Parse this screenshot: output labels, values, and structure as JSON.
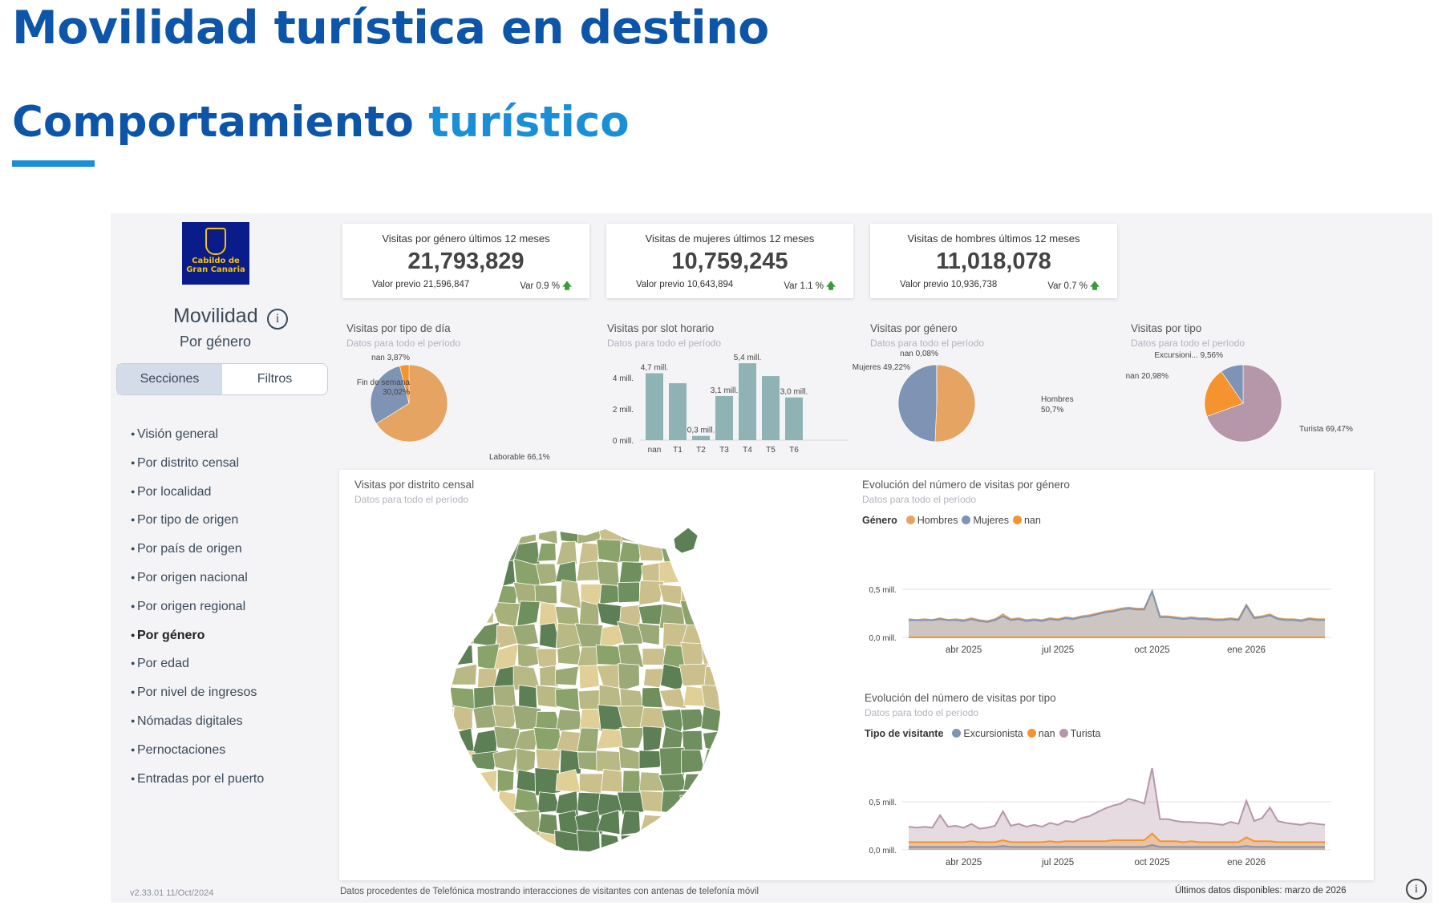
{
  "page": {
    "title": "Movilidad turística en destino",
    "subtitle_a": "Comportamiento",
    "subtitle_b": "turístico"
  },
  "sidebar": {
    "logo_text_1": "Cabildo de",
    "logo_text_2": "Gran Canaria",
    "title": "Movilidad",
    "info_icon": "i",
    "subtitle": "Por género",
    "tabs": [
      "Secciones",
      "Filtros"
    ],
    "items": [
      "Visión general",
      "Por distrito censal",
      "Por localidad",
      "Por tipo de origen",
      "Por país de origen",
      "Por origen nacional",
      "Por origen regional",
      "Por género",
      "Por edad",
      "Por nivel de ingresos",
      "Nómadas digitales",
      "Pernoctaciones",
      "Entradas por el puerto"
    ],
    "active_item": "Por género",
    "version": "v2.33.01 11/Oct/2024"
  },
  "kpis": [
    {
      "title": "Visitas por género últimos 12 meses",
      "value": "21,793,829",
      "prev": "Valor previo 21,596,847",
      "var": "Var 0.9 %"
    },
    {
      "title": "Visitas de mujeres últimos 12 meses",
      "value": "10,759,245",
      "prev": "Valor previo 10,643,894",
      "var": "Var 1.1 %"
    },
    {
      "title": "Visitas de hombres últimos 12 meses",
      "value": "11,018,078",
      "prev": "Valor previo 10,936,738",
      "var": "Var 0.7 %"
    }
  ],
  "sections": {
    "common_sub": "Datos para todo el período",
    "tipo_dia": "Visitas por tipo de día",
    "slot": "Visitas por slot horario",
    "genero": "Visitas por género",
    "tipo": "Visitas por tipo",
    "distrito": "Visitas por distrito censal",
    "evol_genero": "Evolución del número de visitas por género",
    "evol_tipo": "Evolución del número de visitas por tipo"
  },
  "legends": {
    "genero_title": "Género",
    "genero_items": [
      "Hombres",
      "Mujeres",
      "nan"
    ],
    "tipo_title": "Tipo de visitante",
    "tipo_items": [
      "Excursionista",
      "nan",
      "Turista"
    ]
  },
  "colors": {
    "orange_light": "#e6a462",
    "blue_grey": "#7f94b5",
    "orange": "#f5942e",
    "teal": "#8fb3b5",
    "mauve": "#b597a9",
    "brand_blue": "#0d55a8",
    "accent_blue": "#1a8fd8"
  },
  "chart_data": [
    {
      "type": "pie",
      "title": "Visitas por tipo de día",
      "labels": [
        "Laborable",
        "Fin de semana",
        "nan"
      ],
      "values": [
        66.1,
        30.02,
        3.87
      ],
      "value_labels": [
        "Laborable 66,1%",
        "Fin de semana 30,02%",
        "nan 3,87%"
      ]
    },
    {
      "type": "bar",
      "title": "Visitas por slot horario",
      "categories": [
        "nan",
        "T1",
        "T2",
        "T3",
        "T4",
        "T5",
        "T6"
      ],
      "values": [
        4.7,
        4.0,
        0.3,
        3.1,
        5.4,
        4.5,
        3.0
      ],
      "data_labels": [
        "4,7 mill.",
        "",
        "0,3 mill.",
        "3,1 mill.",
        "5,4 mill.",
        "",
        "3,0 mill."
      ],
      "ytick_labels": [
        "0 mill.",
        "2 mill.",
        "4 mill."
      ],
      "yticks": [
        0,
        2,
        4
      ],
      "ylim": [
        0,
        5.8
      ]
    },
    {
      "type": "pie",
      "title": "Visitas por género",
      "labels": [
        "Hombres",
        "Mujeres",
        "nan"
      ],
      "values": [
        50.7,
        49.22,
        0.08
      ],
      "value_labels": [
        "Hombres 50,7%",
        "Mujeres 49,22%",
        "nan 0,08%"
      ]
    },
    {
      "type": "pie",
      "title": "Visitas por tipo",
      "labels": [
        "Turista",
        "nan",
        "Excursionista"
      ],
      "values": [
        69.47,
        20.98,
        9.56
      ],
      "value_labels": [
        "Turista 69,47%",
        "nan 20,98%",
        "Excursioni... 9,56%"
      ]
    },
    {
      "type": "area",
      "title": "Evolución del número de visitas por género",
      "xtick_labels": [
        "abr 2025",
        "jul 2025",
        "oct 2025",
        "ene 2026"
      ],
      "ytick_labels": [
        "0,0 mill.",
        "0,5 mill."
      ],
      "yticks": [
        0,
        0.5
      ],
      "ylim": [
        0,
        1.0
      ],
      "series": [
        {
          "name": "Hombres",
          "values": [
            0.19,
            0.18,
            0.19,
            0.18,
            0.2,
            0.18,
            0.19,
            0.18,
            0.2,
            0.18,
            0.17,
            0.19,
            0.24,
            0.19,
            0.2,
            0.18,
            0.19,
            0.18,
            0.2,
            0.19,
            0.21,
            0.2,
            0.22,
            0.23,
            0.25,
            0.27,
            0.28,
            0.3,
            0.31,
            0.3,
            0.3,
            0.48,
            0.22,
            0.22,
            0.21,
            0.2,
            0.21,
            0.2,
            0.2,
            0.19,
            0.19,
            0.2,
            0.19,
            0.34,
            0.21,
            0.22,
            0.24,
            0.2,
            0.19,
            0.19,
            0.18,
            0.2,
            0.19,
            0.19
          ]
        },
        {
          "name": "Mujeres",
          "values": [
            0.18,
            0.18,
            0.18,
            0.18,
            0.19,
            0.18,
            0.18,
            0.17,
            0.19,
            0.17,
            0.16,
            0.18,
            0.22,
            0.18,
            0.19,
            0.17,
            0.18,
            0.17,
            0.19,
            0.18,
            0.2,
            0.19,
            0.21,
            0.22,
            0.24,
            0.26,
            0.27,
            0.29,
            0.3,
            0.29,
            0.29,
            0.48,
            0.21,
            0.21,
            0.2,
            0.19,
            0.2,
            0.19,
            0.19,
            0.18,
            0.18,
            0.19,
            0.18,
            0.33,
            0.2,
            0.21,
            0.23,
            0.19,
            0.18,
            0.18,
            0.17,
            0.19,
            0.18,
            0.18
          ]
        },
        {
          "name": "nan",
          "values": [
            0.0,
            0.0,
            0.0,
            0.0,
            0.0,
            0.0,
            0.0,
            0.0,
            0.0,
            0.0,
            0.0,
            0.0,
            0.0,
            0.0,
            0.0,
            0.0,
            0.0,
            0.0,
            0.0,
            0.0,
            0.0,
            0.0,
            0.0,
            0.0,
            0.0,
            0.0,
            0.0,
            0.0,
            0.0,
            0.0,
            0.0,
            0.0,
            0.0,
            0.0,
            0.0,
            0.0,
            0.0,
            0.0,
            0.0,
            0.0,
            0.0,
            0.0,
            0.0,
            0.0,
            0.0,
            0.0,
            0.0,
            0.0,
            0.0,
            0.0,
            0.0,
            0.0,
            0.0,
            0.0
          ]
        }
      ]
    },
    {
      "type": "area",
      "title": "Evolución del número de visitas por tipo",
      "xtick_labels": [
        "abr 2025",
        "jul 2025",
        "oct 2025",
        "ene 2026"
      ],
      "ytick_labels": [
        "0,0 mill.",
        "0,5 mill."
      ],
      "yticks": [
        0,
        0.5
      ],
      "ylim": [
        0,
        1.0
      ],
      "series": [
        {
          "name": "Excursionista",
          "values": [
            0.03,
            0.03,
            0.03,
            0.03,
            0.03,
            0.03,
            0.03,
            0.03,
            0.03,
            0.03,
            0.03,
            0.03,
            0.04,
            0.03,
            0.03,
            0.03,
            0.03,
            0.03,
            0.03,
            0.03,
            0.03,
            0.03,
            0.03,
            0.03,
            0.03,
            0.03,
            0.03,
            0.03,
            0.03,
            0.03,
            0.03,
            0.05,
            0.03,
            0.03,
            0.03,
            0.03,
            0.03,
            0.03,
            0.03,
            0.03,
            0.03,
            0.03,
            0.03,
            0.04,
            0.03,
            0.03,
            0.03,
            0.03,
            0.03,
            0.03,
            0.03,
            0.03,
            0.03,
            0.03
          ]
        },
        {
          "name": "nan",
          "values": [
            0.08,
            0.08,
            0.08,
            0.08,
            0.08,
            0.08,
            0.08,
            0.08,
            0.09,
            0.08,
            0.08,
            0.08,
            0.1,
            0.08,
            0.08,
            0.08,
            0.08,
            0.08,
            0.09,
            0.08,
            0.09,
            0.09,
            0.09,
            0.09,
            0.09,
            0.09,
            0.1,
            0.1,
            0.1,
            0.1,
            0.1,
            0.17,
            0.09,
            0.09,
            0.09,
            0.08,
            0.09,
            0.08,
            0.08,
            0.08,
            0.08,
            0.08,
            0.08,
            0.13,
            0.09,
            0.09,
            0.09,
            0.08,
            0.08,
            0.08,
            0.08,
            0.08,
            0.08,
            0.08
          ]
        },
        {
          "name": "Turista",
          "values": [
            0.24,
            0.23,
            0.24,
            0.23,
            0.36,
            0.24,
            0.25,
            0.23,
            0.27,
            0.22,
            0.23,
            0.25,
            0.4,
            0.25,
            0.27,
            0.24,
            0.26,
            0.24,
            0.28,
            0.26,
            0.3,
            0.29,
            0.33,
            0.35,
            0.39,
            0.43,
            0.46,
            0.48,
            0.53,
            0.51,
            0.48,
            0.85,
            0.32,
            0.32,
            0.3,
            0.29,
            0.29,
            0.28,
            0.28,
            0.27,
            0.26,
            0.29,
            0.27,
            0.51,
            0.3,
            0.33,
            0.44,
            0.3,
            0.28,
            0.27,
            0.26,
            0.28,
            0.27,
            0.26
          ]
        }
      ]
    }
  ],
  "map": {
    "region_colors": [
      "#8aa36a",
      "#a7b07a",
      "#b9b985",
      "#6f8f5f",
      "#cbc08c",
      "#e1cf98",
      "#5d7f55",
      "#9aa976"
    ]
  },
  "footer": {
    "source": "Datos procedentes de Telefónica mostrando interacciones de visitantes con antenas de telefonía móvil",
    "last": "Últimos datos disponibles: marzo de 2026",
    "info_icon": "i"
  }
}
